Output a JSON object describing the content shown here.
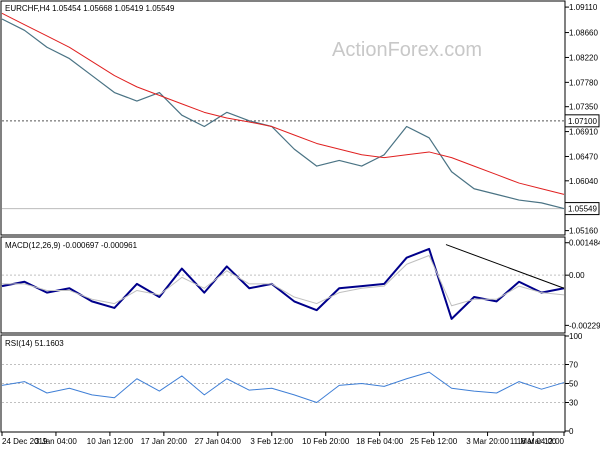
{
  "header": {
    "main_info": "EURCHF,H4  1.05454 1.05668 1.05419 1.05549",
    "watermark": "ActionForex.com"
  },
  "colors": {
    "price": "#4a7384",
    "ma": "#e02020",
    "macd": "#00008b",
    "signal": "#bfbfbf",
    "rsi": "#3f7fd6",
    "trendline": "#000000",
    "grid": "#c0c0c0"
  },
  "chart_data": [
    {
      "type": "line",
      "panel": "price",
      "ylim": [
        1.051,
        1.092
      ],
      "yticks": [
        "1.09110",
        "1.08660",
        "1.08220",
        "1.07780",
        "1.07350",
        "1.06910",
        "1.06470",
        "1.06040",
        "1.05160"
      ],
      "ytick_values": [
        1.0911,
        1.0866,
        1.0822,
        1.0778,
        1.0735,
        1.0691,
        1.0647,
        1.0604,
        1.0516
      ],
      "level_line": {
        "label": "1.07100",
        "value": 1.071
      },
      "last_price": {
        "label": "1.05549",
        "value": 1.05549
      },
      "x": [
        0,
        4,
        8,
        12,
        16,
        20,
        24,
        28,
        32,
        36,
        40,
        44,
        48,
        52,
        56,
        60,
        64,
        68,
        72,
        76,
        80,
        84,
        88,
        92,
        96,
        100
      ],
      "series": [
        {
          "name": "",
          "values": [
            1.089,
            1.087,
            1.084,
            1.082,
            1.079,
            1.076,
            1.0745,
            1.076,
            1.072,
            1.07,
            1.0725,
            1.071,
            1.07,
            1.066,
            1.063,
            1.064,
            1.063,
            1.065,
            1.07,
            1.068,
            1.062,
            1.059,
            1.058,
            1.057,
            1.0565,
            1.0555
          ]
        },
        {
          "name": "",
          "values": [
            1.09,
            1.088,
            1.086,
            1.084,
            1.0815,
            1.079,
            1.077,
            1.0755,
            1.074,
            1.0725,
            1.0715,
            1.0708,
            1.07,
            1.0685,
            1.067,
            1.066,
            1.065,
            1.0645,
            1.065,
            1.0655,
            1.0645,
            1.063,
            1.0615,
            1.06,
            1.059,
            1.058
          ]
        }
      ]
    },
    {
      "type": "line",
      "panel": "macd",
      "title": "MACD(12,26,9) -0.000697 -0.000961",
      "ylim": [
        -0.0026,
        0.0017
      ],
      "yticks": [
        "0.001484",
        "0.00",
        "-0.002297"
      ],
      "ytick_values": [
        0.001484,
        0.0,
        -0.002297
      ],
      "x": [
        0,
        4,
        8,
        12,
        16,
        20,
        24,
        28,
        32,
        36,
        40,
        44,
        48,
        52,
        56,
        60,
        64,
        68,
        72,
        76,
        80,
        84,
        88,
        92,
        96,
        100
      ],
      "series": [
        {
          "name": "",
          "values": [
            -0.0005,
            -0.0003,
            -0.0008,
            -0.0006,
            -0.0012,
            -0.0015,
            -0.0004,
            -0.001,
            0.0003,
            -0.0008,
            0.0004,
            -0.0006,
            -0.0004,
            -0.0012,
            -0.0016,
            -0.0006,
            -0.0005,
            -0.0004,
            0.0008,
            0.0012,
            -0.002,
            -0.001,
            -0.0012,
            -0.0003,
            -0.0008,
            -0.0006
          ]
        },
        {
          "name": "",
          "values": [
            -0.0004,
            -0.0004,
            -0.0007,
            -0.0007,
            -0.0011,
            -0.0013,
            -0.0007,
            -0.0009,
            -0.0001,
            -0.0006,
            0.0002,
            -0.0004,
            -0.0004,
            -0.001,
            -0.0013,
            -0.0008,
            -0.0006,
            -0.0005,
            0.0005,
            0.0009,
            -0.0014,
            -0.0011,
            -0.0011,
            -0.0005,
            -0.0008,
            -0.0009
          ]
        }
      ],
      "trendline": {
        "x": [
          79,
          100
        ],
        "values": [
          0.0014,
          -0.0006
        ]
      }
    },
    {
      "type": "line",
      "panel": "rsi",
      "title": "RSI(14) 51.1603",
      "ylim": [
        0,
        100
      ],
      "yticks": [
        "100",
        "70",
        "50",
        "30",
        "0"
      ],
      "ytick_values": [
        100,
        70,
        50,
        30,
        0
      ],
      "x": [
        0,
        4,
        8,
        12,
        16,
        20,
        24,
        28,
        32,
        36,
        40,
        44,
        48,
        52,
        56,
        60,
        64,
        68,
        72,
        76,
        80,
        84,
        88,
        92,
        96,
        100
      ],
      "series": [
        {
          "name": "",
          "values": [
            48,
            52,
            40,
            45,
            38,
            35,
            55,
            42,
            58,
            38,
            55,
            43,
            45,
            38,
            30,
            48,
            50,
            47,
            55,
            62,
            45,
            42,
            40,
            52,
            44,
            51
          ]
        }
      ]
    }
  ],
  "x_axis": {
    "labels": [
      "24 Dec 2019",
      "3 Jan 04:00",
      "10 Jan 12:00",
      "17 Jan 20:00",
      "27 Jan 04:00",
      "3 Feb 12:00",
      "10 Feb 20:00",
      "18 Feb 04:00",
      "25 Feb 12:00",
      "3 Mar 20:00",
      "11 Mar 04:00",
      "18 Mar 12:00"
    ],
    "positions": [
      0,
      9.6,
      19.2,
      28.8,
      38.4,
      48.0,
      57.6,
      67.2,
      76.8,
      86.4,
      94.5,
      100
    ]
  }
}
